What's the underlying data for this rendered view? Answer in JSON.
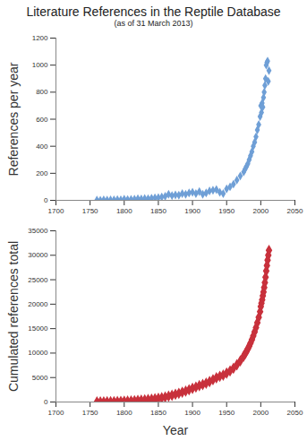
{
  "chart_data": [
    {
      "type": "scatter",
      "title": "Literature References in the Reptile Database",
      "subtitle": "(as of 31 March 2013)",
      "y_label": "References per year",
      "x": [
        1760,
        1765,
        1770,
        1775,
        1780,
        1785,
        1790,
        1795,
        1800,
        1805,
        1810,
        1815,
        1820,
        1825,
        1830,
        1835,
        1840,
        1845,
        1850,
        1855,
        1860,
        1865,
        1870,
        1875,
        1880,
        1885,
        1890,
        1895,
        1900,
        1905,
        1910,
        1915,
        1920,
        1925,
        1930,
        1935,
        1940,
        1945,
        1950,
        1955,
        1960,
        1965,
        1970,
        1975,
        1977,
        1979,
        1981,
        1983,
        1985,
        1987,
        1989,
        1991,
        1993,
        1995,
        1997,
        1999,
        2000,
        2001,
        2002,
        2003,
        2004,
        2005,
        2006,
        2007,
        2008,
        2009,
        2010,
        2011,
        2012
      ],
      "values": [
        2,
        1,
        3,
        2,
        4,
        3,
        5,
        4,
        8,
        6,
        7,
        9,
        12,
        10,
        14,
        12,
        16,
        18,
        20,
        25,
        30,
        45,
        35,
        40,
        38,
        50,
        45,
        55,
        60,
        50,
        65,
        45,
        55,
        70,
        75,
        80,
        60,
        50,
        85,
        100,
        120,
        150,
        180,
        210,
        230,
        250,
        270,
        300,
        330,
        360,
        400,
        430,
        470,
        520,
        560,
        620,
        700,
        650,
        720,
        690,
        760,
        800,
        850,
        900,
        1000,
        1020,
        1030,
        880,
        960
      ],
      "color": "#6f9fd6",
      "marker": "diamond",
      "xlim": [
        1700,
        2050
      ],
      "xticks": [
        1700,
        1750,
        1800,
        1850,
        1900,
        1950,
        2000,
        2050
      ],
      "ylim": [
        0,
        1200
      ],
      "yticks": [
        0,
        200,
        400,
        600,
        800,
        1000,
        1200
      ],
      "grid": false
    },
    {
      "type": "line",
      "x_label": "Year",
      "y_label": "Cumulated references total",
      "x": [
        1760,
        1765,
        1770,
        1775,
        1780,
        1785,
        1790,
        1795,
        1800,
        1805,
        1810,
        1815,
        1820,
        1825,
        1830,
        1835,
        1840,
        1845,
        1850,
        1855,
        1860,
        1865,
        1870,
        1875,
        1880,
        1885,
        1890,
        1895,
        1900,
        1905,
        1910,
        1915,
        1920,
        1925,
        1930,
        1935,
        1940,
        1945,
        1950,
        1955,
        1960,
        1965,
        1970,
        1975,
        1977,
        1979,
        1981,
        1983,
        1985,
        1987,
        1989,
        1991,
        1993,
        1995,
        1997,
        1999,
        2000,
        2001,
        2002,
        2003,
        2004,
        2005,
        2006,
        2007,
        2008,
        2009,
        2010,
        2011,
        2012
      ],
      "values": [
        10,
        20,
        30,
        45,
        60,
        75,
        95,
        115,
        150,
        180,
        215,
        255,
        310,
        365,
        430,
        495,
        570,
        655,
        750,
        870,
        1010,
        1200,
        1380,
        1580,
        1770,
        2000,
        2230,
        2500,
        2800,
        3050,
        3350,
        3580,
        3850,
        4180,
        4550,
        4950,
        5250,
        5500,
        5900,
        6350,
        6900,
        7600,
        8400,
        9400,
        9850,
        10330,
        10850,
        11420,
        12050,
        12740,
        13500,
        14330,
        15230,
        16220,
        17300,
        18480,
        19500,
        20200,
        20900,
        21700,
        22500,
        23400,
        24400,
        25500,
        26800,
        27900,
        29000,
        30000,
        31000
      ],
      "color": "#c8313c",
      "marker": "diamond",
      "xlim": [
        1700,
        2050
      ],
      "xticks": [
        1700,
        1750,
        1800,
        1850,
        1900,
        1950,
        2000,
        2050
      ],
      "ylim": [
        0,
        35000
      ],
      "yticks": [
        0,
        5000,
        10000,
        15000,
        20000,
        25000,
        30000,
        35000
      ],
      "grid": false
    }
  ]
}
